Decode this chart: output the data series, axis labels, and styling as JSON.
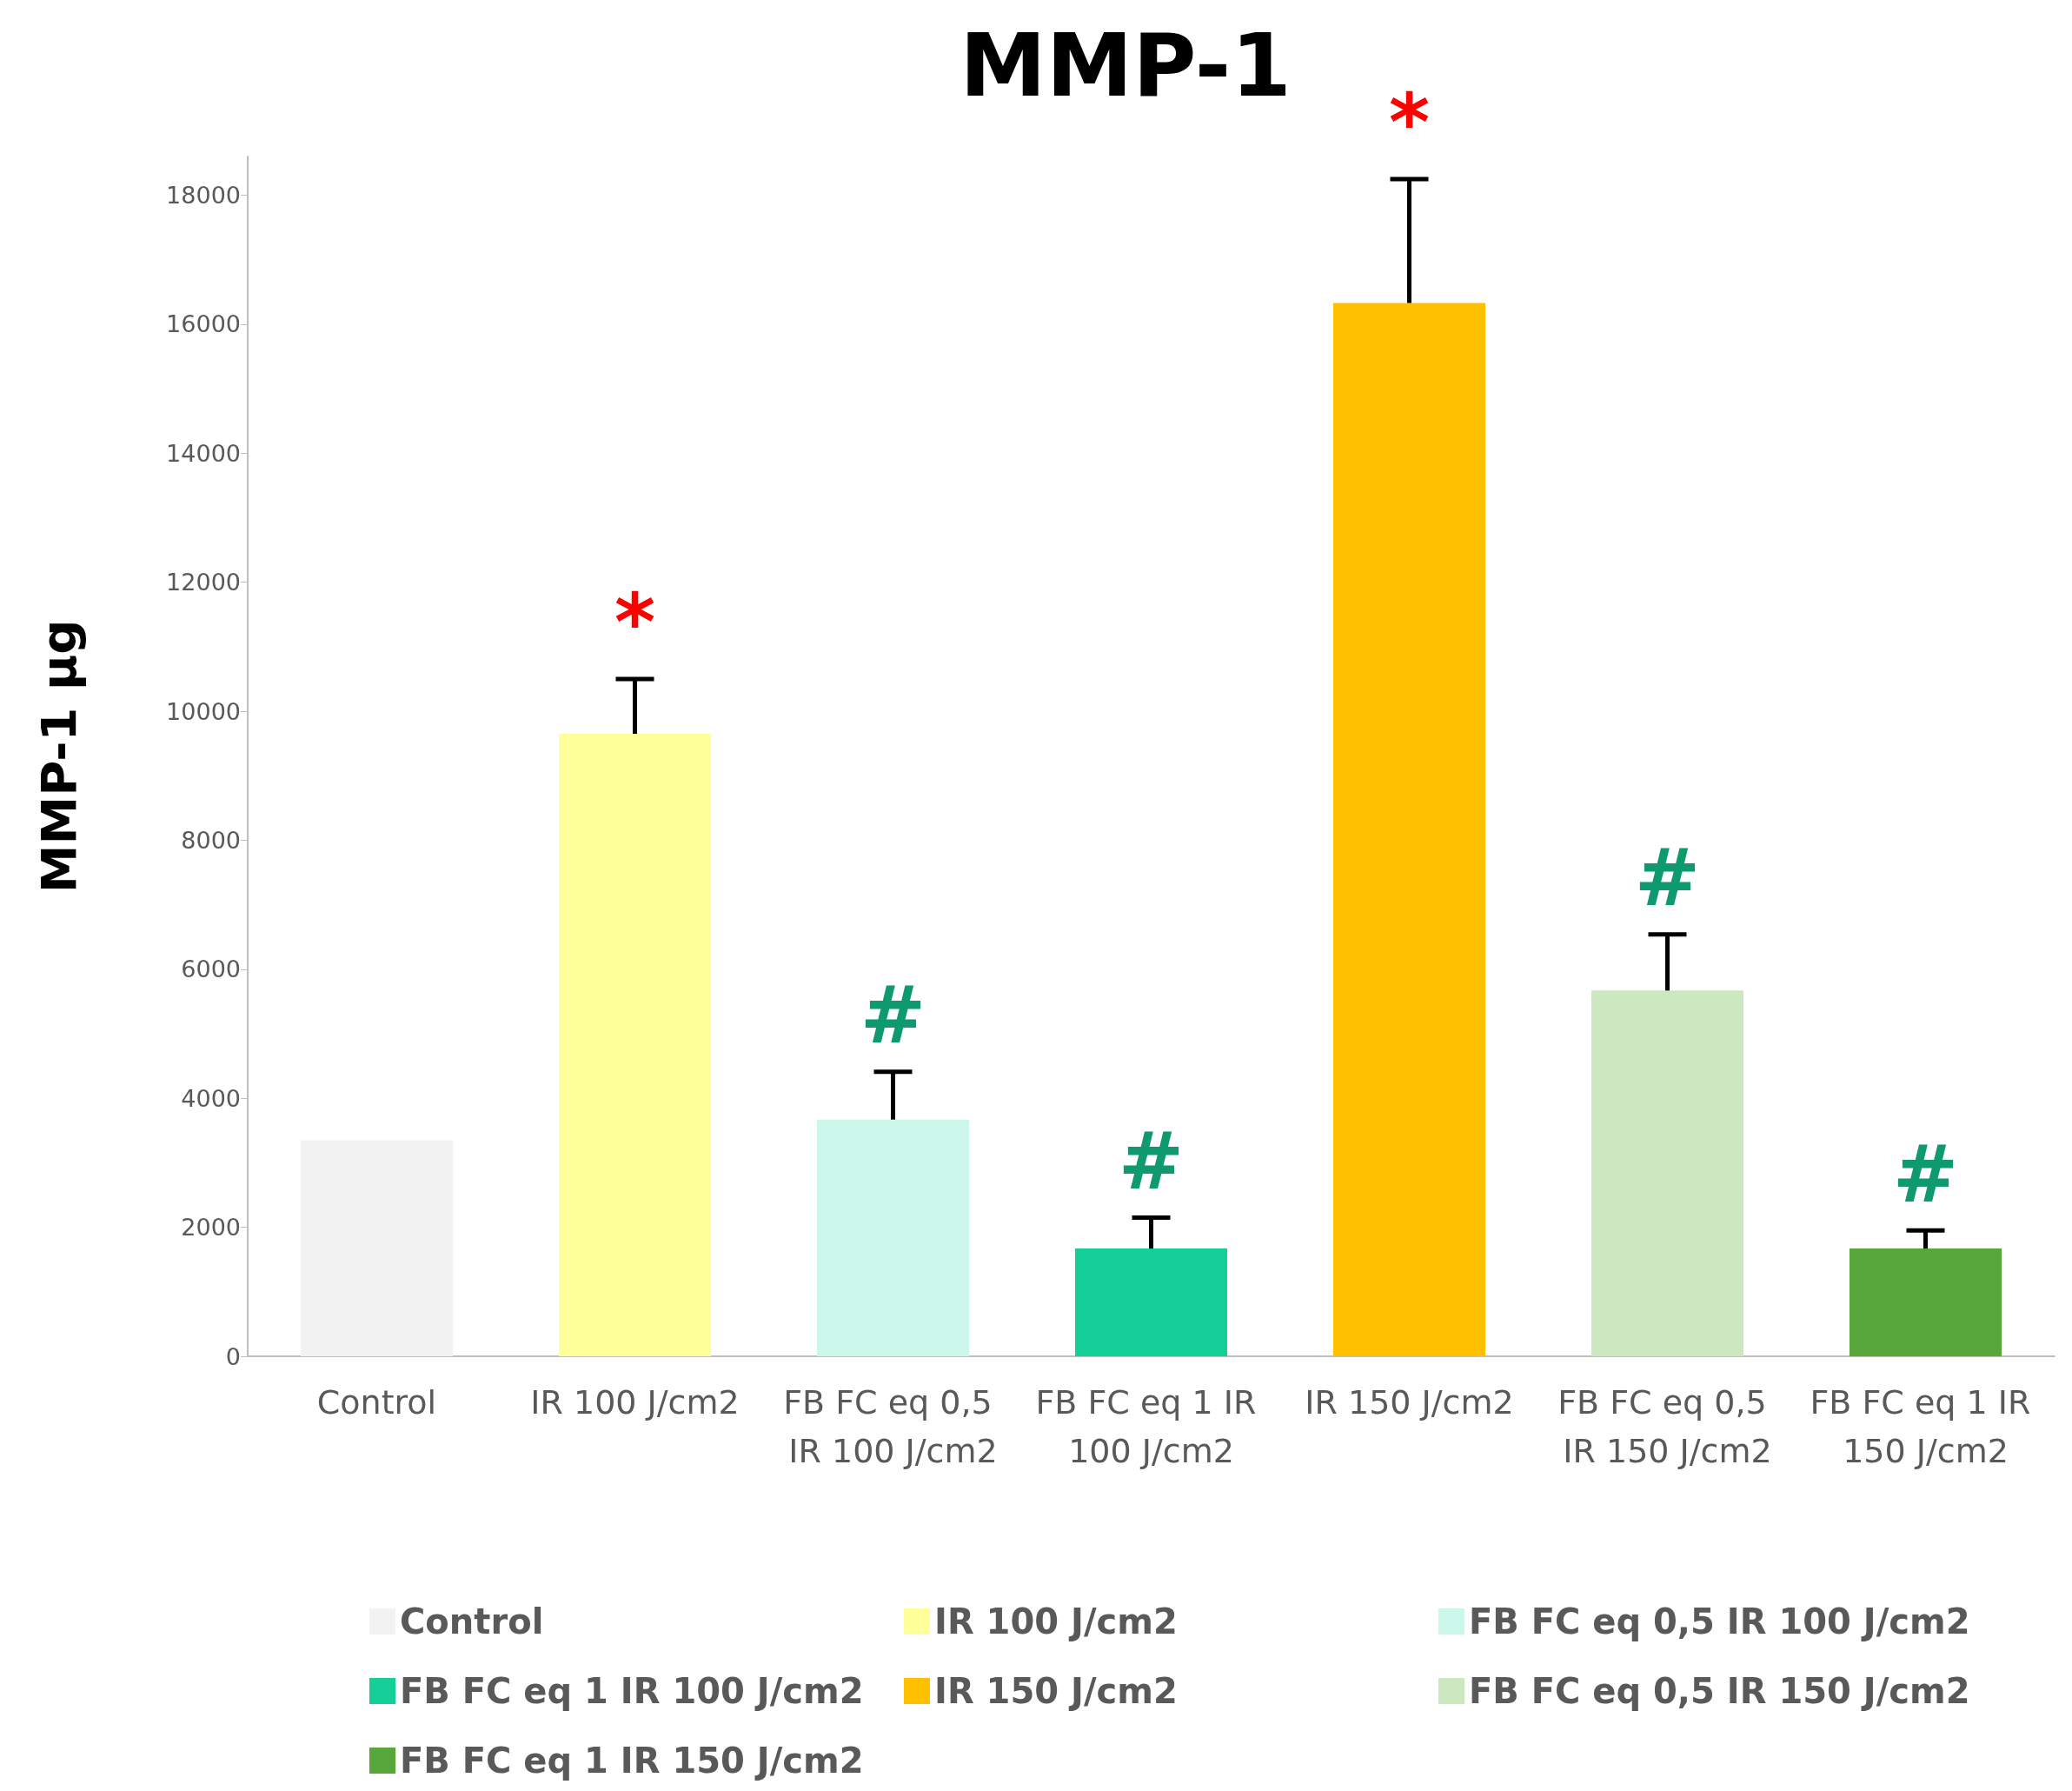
{
  "chart_data": {
    "type": "bar",
    "title": "MMP-1",
    "ylabel": "MMP-1 µg",
    "categories": [
      "Control",
      "IR 100 J/cm2",
      "FB FC eq 0,5 IR 100 J/cm2",
      "FB FC eq 1 IR 100 J/cm2",
      "IR 150 J/cm2",
      "FB FC eq 0,5 IR 150 J/cm2",
      "FB FC eq 1 IR 150 J/cm2"
    ],
    "series": [
      {
        "name": "Control",
        "color": "#f2f2f2",
        "values": [
          3350,
          null,
          null,
          null,
          null,
          null,
          null
        ]
      },
      {
        "name": "IR 100 J/cm2",
        "color": "#ffff99",
        "values": [
          null,
          9650,
          null,
          null,
          null,
          null,
          null
        ],
        "errors": [
          null,
          [
            9650,
            10500
          ],
          null,
          null,
          null,
          null,
          null
        ]
      },
      {
        "name": "FB FC eq 0,5 IR 100 J/cm2",
        "color": "#ccf7eb",
        "values": [
          null,
          null,
          3670,
          null,
          null,
          null,
          null
        ],
        "errors": [
          null,
          null,
          [
            3670,
            4410
          ],
          null,
          null,
          null,
          null
        ]
      },
      {
        "name": "FB FC eq 1 IR 100 J/cm2",
        "color": "#14cf98",
        "values": [
          null,
          null,
          null,
          1670,
          null,
          null,
          null
        ],
        "errors": [
          null,
          null,
          null,
          [
            1670,
            2150
          ],
          null,
          null,
          null
        ]
      },
      {
        "name": "IR 150 J/cm2",
        "color": "#ffc000",
        "values": [
          null,
          null,
          null,
          null,
          16330,
          null,
          null
        ],
        "errors": [
          null,
          null,
          null,
          null,
          [
            16330,
            18250
          ],
          null,
          null
        ]
      },
      {
        "name": "FB FC eq 0,5 IR 150 J/cm2",
        "color": "#cce8c0",
        "values": [
          null,
          null,
          null,
          null,
          null,
          5670,
          null
        ],
        "errors": [
          null,
          null,
          null,
          null,
          null,
          [
            5670,
            6540
          ],
          null
        ]
      },
      {
        "name": "FB FC eq 1 IR 150 J/cm2",
        "color": "#58a73a",
        "values": [
          null,
          null,
          null,
          null,
          null,
          null,
          1670
        ],
        "errors": [
          null,
          null,
          null,
          null,
          null,
          null,
          [
            1670,
            1950
          ]
        ]
      }
    ],
    "ylim": [
      0,
      18600
    ],
    "yticks": [
      0,
      2000,
      4000,
      6000,
      8000,
      10000,
      12000,
      14000,
      16000,
      18000
    ],
    "grid": false,
    "legend": "bottom",
    "annotations": [
      {
        "text": "*",
        "x": "IR 100 J/cm2",
        "y": 10500
      },
      {
        "text": "*",
        "x": "IR 150 J/cm2",
        "y": 18250
      },
      {
        "text": "#",
        "x": "FB FC eq 0,5 IR 100 J/cm2",
        "y": 4410
      },
      {
        "text": "#",
        "x": "FB FC eq 1 IR 100 J/cm2",
        "y": 2150
      },
      {
        "text": "#",
        "x": "FB FC eq 0,5 IR 150 J/cm2",
        "y": 6540
      },
      {
        "text": "#",
        "x": "FB FC eq 1 IR 150 J/cm2",
        "y": 1950
      }
    ]
  }
}
